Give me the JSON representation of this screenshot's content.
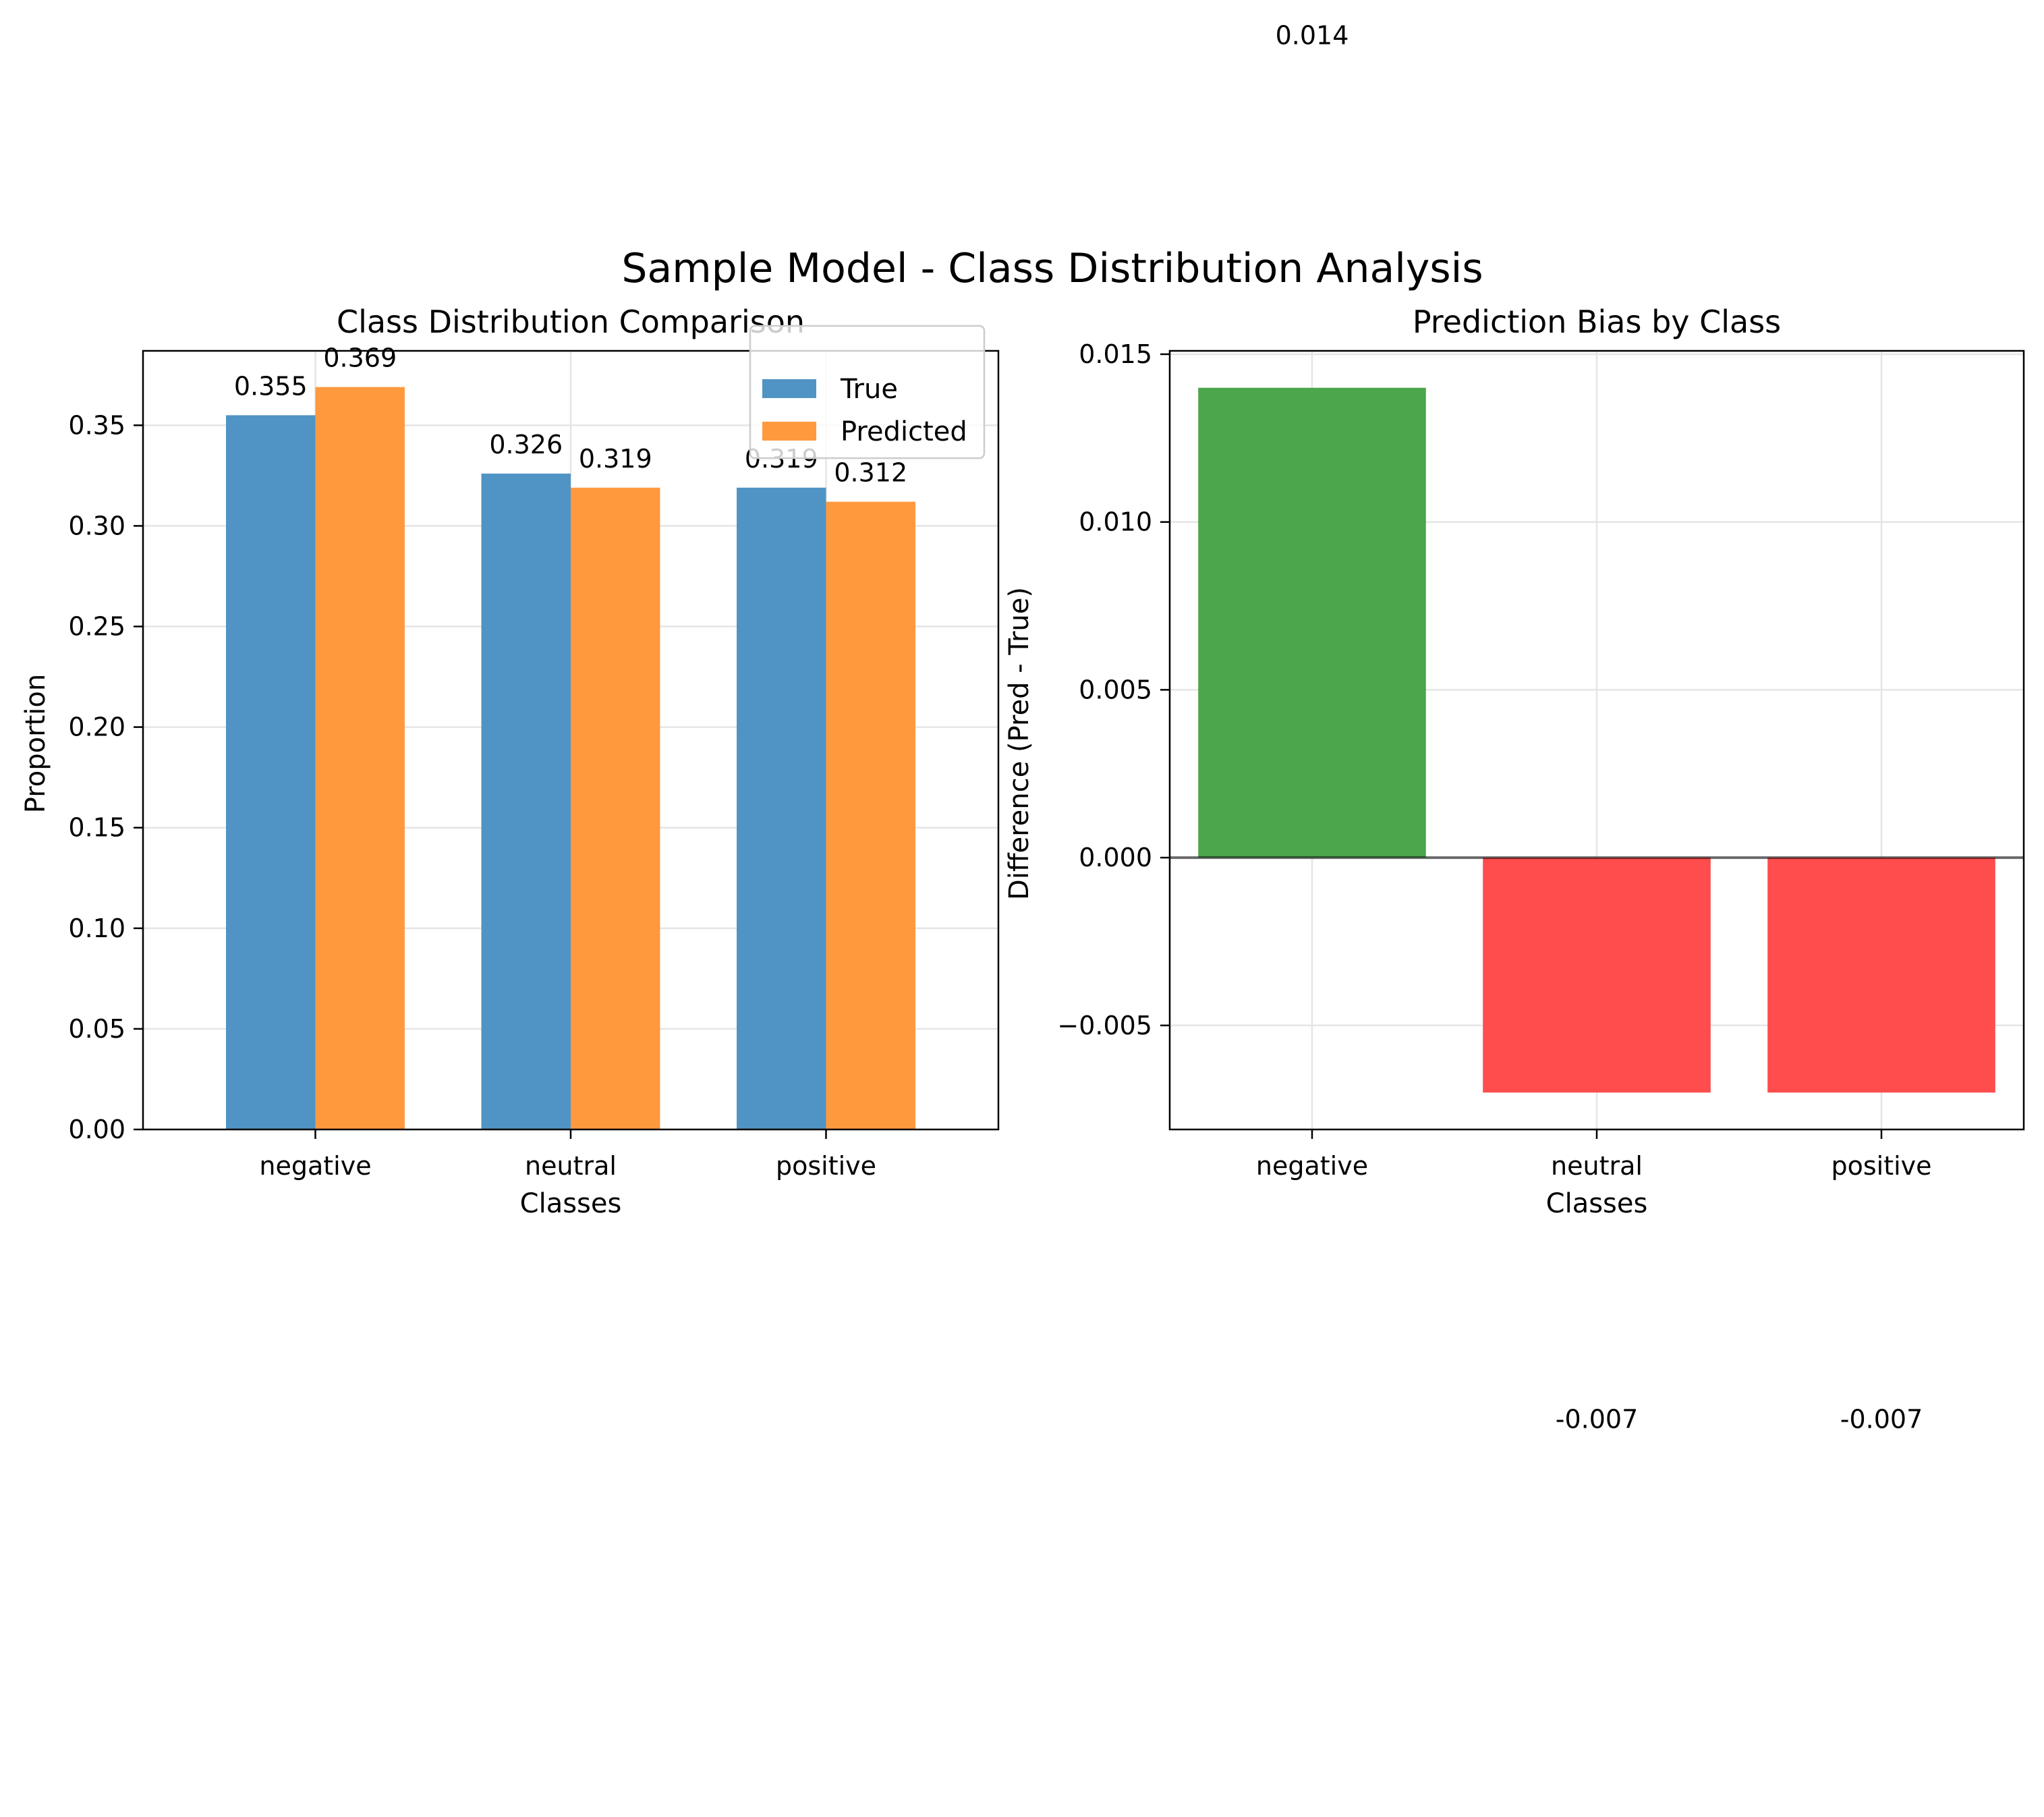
{
  "figure": {
    "suptitle": "Sample Model - Class Distribution Analysis"
  },
  "chart_data": [
    {
      "type": "bar",
      "title": "Class Distribution Comparison",
      "xlabel": "Classes",
      "ylabel": "Proportion",
      "categories": [
        "negative",
        "neutral",
        "positive"
      ],
      "series": [
        {
          "name": "True",
          "values": [
            0.355,
            0.326,
            0.319
          ],
          "labels": [
            "0.355",
            "0.326",
            "0.319"
          ],
          "color": "#4f94c4"
        },
        {
          "name": "Predicted",
          "values": [
            0.369,
            0.319,
            0.312
          ],
          "labels": [
            "0.369",
            "0.319",
            "0.312"
          ],
          "color": "#ff993e"
        }
      ],
      "ylim": [
        0,
        0.387
      ],
      "yticks": [
        0.0,
        0.05,
        0.1,
        0.15,
        0.2,
        0.25,
        0.3,
        0.35
      ],
      "ytick_labels": [
        "0.00",
        "0.05",
        "0.10",
        "0.15",
        "0.20",
        "0.25",
        "0.30",
        "0.35"
      ],
      "grid": true,
      "legend": "top-right"
    },
    {
      "type": "bar",
      "title": "Prediction Bias by Class",
      "xlabel": "Classes",
      "ylabel": "Difference (Pred - True)",
      "categories": [
        "negative",
        "neutral",
        "positive"
      ],
      "values": [
        0.014,
        -0.007,
        -0.007
      ],
      "labels": [
        "0.014",
        "-0.007",
        "-0.007"
      ],
      "colors": [
        "#4ca64c",
        "#ff4c4c",
        "#ff4c4c"
      ],
      "ylim": [
        -0.0081,
        0.0151
      ],
      "yticks": [
        -0.005,
        0.0,
        0.005,
        0.01,
        0.015
      ],
      "ytick_labels": [
        "−0.005",
        "0.000",
        "0.005",
        "0.010",
        "0.015"
      ],
      "zero_line": true,
      "grid": true
    }
  ]
}
